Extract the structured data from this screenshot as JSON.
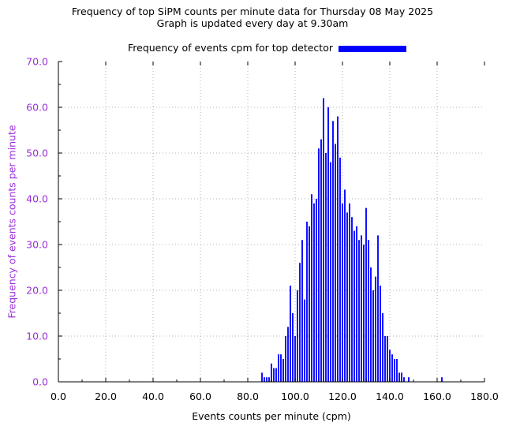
{
  "chart_data": {
    "type": "bar",
    "title": "Frequency of top SiPM counts per minute data for Thursday 08 May 2025",
    "subtitle": "Graph is updated every day at 9.30am",
    "xlabel": "Events counts per minute (cpm)",
    "ylabel": "Frequency of events counts per minute",
    "xlim": [
      0,
      180
    ],
    "ylim": [
      0,
      70
    ],
    "x_ticks": [
      "0.0",
      "20.0",
      "40.0",
      "60.0",
      "80.0",
      "100.0",
      "120.0",
      "140.0",
      "160.0",
      "180.0"
    ],
    "y_ticks": [
      "0.0",
      "10.0",
      "20.0",
      "30.0",
      "40.0",
      "50.0",
      "60.0",
      "70.0"
    ],
    "grid": true,
    "legend_position": "top-center",
    "series": [
      {
        "name": "Frequency of events cpm for top detector",
        "color": "#0000ff",
        "x": [
          86,
          87,
          88,
          89,
          90,
          91,
          92,
          93,
          94,
          95,
          96,
          97,
          98,
          99,
          100,
          101,
          102,
          103,
          104,
          105,
          106,
          107,
          108,
          109,
          110,
          111,
          112,
          113,
          114,
          115,
          116,
          117,
          118,
          119,
          120,
          121,
          122,
          123,
          124,
          125,
          126,
          127,
          128,
          129,
          130,
          131,
          132,
          133,
          134,
          135,
          136,
          137,
          138,
          139,
          140,
          141,
          142,
          143,
          144,
          145,
          146,
          147,
          148,
          162
        ],
        "y": [
          2,
          1,
          1,
          1,
          4,
          3,
          3,
          6,
          6,
          5,
          10,
          12,
          21,
          15,
          10,
          20,
          26,
          31,
          18,
          35,
          34,
          41,
          39,
          40,
          51,
          53,
          62,
          50,
          60,
          48,
          57,
          52,
          58,
          49,
          39,
          42,
          37,
          39,
          36,
          33,
          34,
          31,
          32,
          30,
          38,
          31,
          25,
          20,
          23,
          32,
          21,
          15,
          10,
          10,
          7,
          6,
          5,
          5,
          2,
          2,
          1,
          0,
          1,
          1
        ]
      }
    ],
    "colors": {
      "bar": "#0000ff",
      "axis_label": "#9b30d9",
      "grid": "#b0b0b0"
    }
  }
}
